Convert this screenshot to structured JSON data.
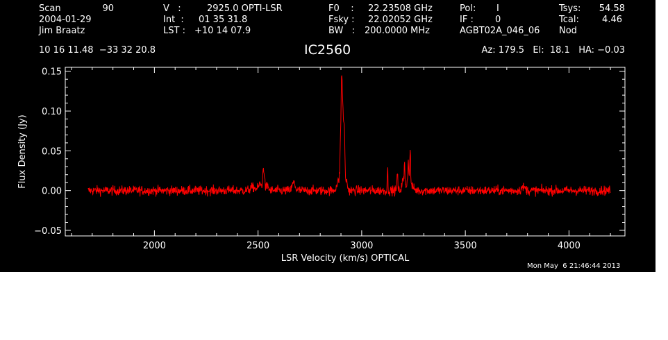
{
  "header": {
    "scan_label": "Scan",
    "scan_value": "90",
    "date": "2004-01-29",
    "observer": "Jim Braatz",
    "v_label": "V   :",
    "v_value": "2925.0 OPTI-LSR",
    "int_label": "Int  :",
    "int_value": "01 35 31.8",
    "lst_label": "LST :",
    "lst_value": "+10 14 07.9",
    "f0_label": "F0    :",
    "f0_value": "22.23508 GHz",
    "fsky_label": "Fsky :",
    "fsky_value": "22.02052 GHz",
    "bw_label": "BW   :",
    "bw_value": "200.0000 MHz",
    "pol_label": "Pol:",
    "pol_value": "I",
    "if_label": "IF :",
    "if_value": "0",
    "project": "AGBT02A_046_06",
    "tsys_label": "Tsys:",
    "tsys_value": "54.58",
    "tcal_label": "Tcal:",
    "tcal_value": "4.46",
    "mode": "Nod",
    "coords": "10 16 11.48  −33 32 20.8",
    "source": "IC2560",
    "az_el_ha": "Az: 179.5   El:  18.1   HA: −0.03",
    "timestamp": "Mon May  6 21:46:44 2013"
  },
  "colors": {
    "background": "#000000",
    "foreground": "#ffffff",
    "spectrum": "#ff0000"
  },
  "chart_data": {
    "type": "line",
    "xlabel": "LSR Velocity (km/s) OPTICAL",
    "ylabel": "Flux Density (Jy)",
    "xlim": [
      1570,
      4270
    ],
    "ylim": [
      -0.057,
      0.155
    ],
    "x_ticks": [
      2000,
      2500,
      3000,
      3500,
      4000
    ],
    "x_tick_labels": [
      "2000",
      "2500",
      "3000",
      "3500",
      "4000"
    ],
    "y_ticks": [
      -0.05,
      0.0,
      0.05,
      0.1,
      0.15
    ],
    "y_tick_labels": [
      "−0.05",
      "0.00",
      "0.05",
      "0.10",
      "0.15"
    ],
    "x_range": [
      1680,
      4200
    ],
    "noise_rms": 0.003,
    "series": [
      {
        "features": [
          {
            "x": 2475,
            "y": 0.004,
            "width": 12
          },
          {
            "x": 2510,
            "y": 0.008,
            "width": 8
          },
          {
            "x": 2527,
            "y": 0.028,
            "width": 4
          },
          {
            "x": 2545,
            "y": 0.006,
            "width": 6
          },
          {
            "x": 2672,
            "y": 0.01,
            "width": 7
          },
          {
            "x": 2890,
            "y": 0.012,
            "width": 10
          },
          {
            "x": 2898,
            "y": 0.045,
            "width": 3
          },
          {
            "x": 2904,
            "y": 0.134,
            "width": 3
          },
          {
            "x": 2910,
            "y": 0.075,
            "width": 2.5
          },
          {
            "x": 2916,
            "y": 0.074,
            "width": 3
          },
          {
            "x": 2926,
            "y": 0.012,
            "width": 5
          },
          {
            "x": 3125,
            "y": 0.03,
            "width": 1.5
          },
          {
            "x": 3172,
            "y": 0.024,
            "width": 2
          },
          {
            "x": 3200,
            "y": 0.012,
            "width": 6
          },
          {
            "x": 3207,
            "y": 0.028,
            "width": 1.5
          },
          {
            "x": 3225,
            "y": 0.028,
            "width": 2.5
          },
          {
            "x": 3234,
            "y": 0.042,
            "width": 2
          },
          {
            "x": 3228,
            "y": 0.01,
            "width": 14
          },
          {
            "x": 3780,
            "y": 0.004,
            "width": 10
          }
        ]
      }
    ]
  }
}
